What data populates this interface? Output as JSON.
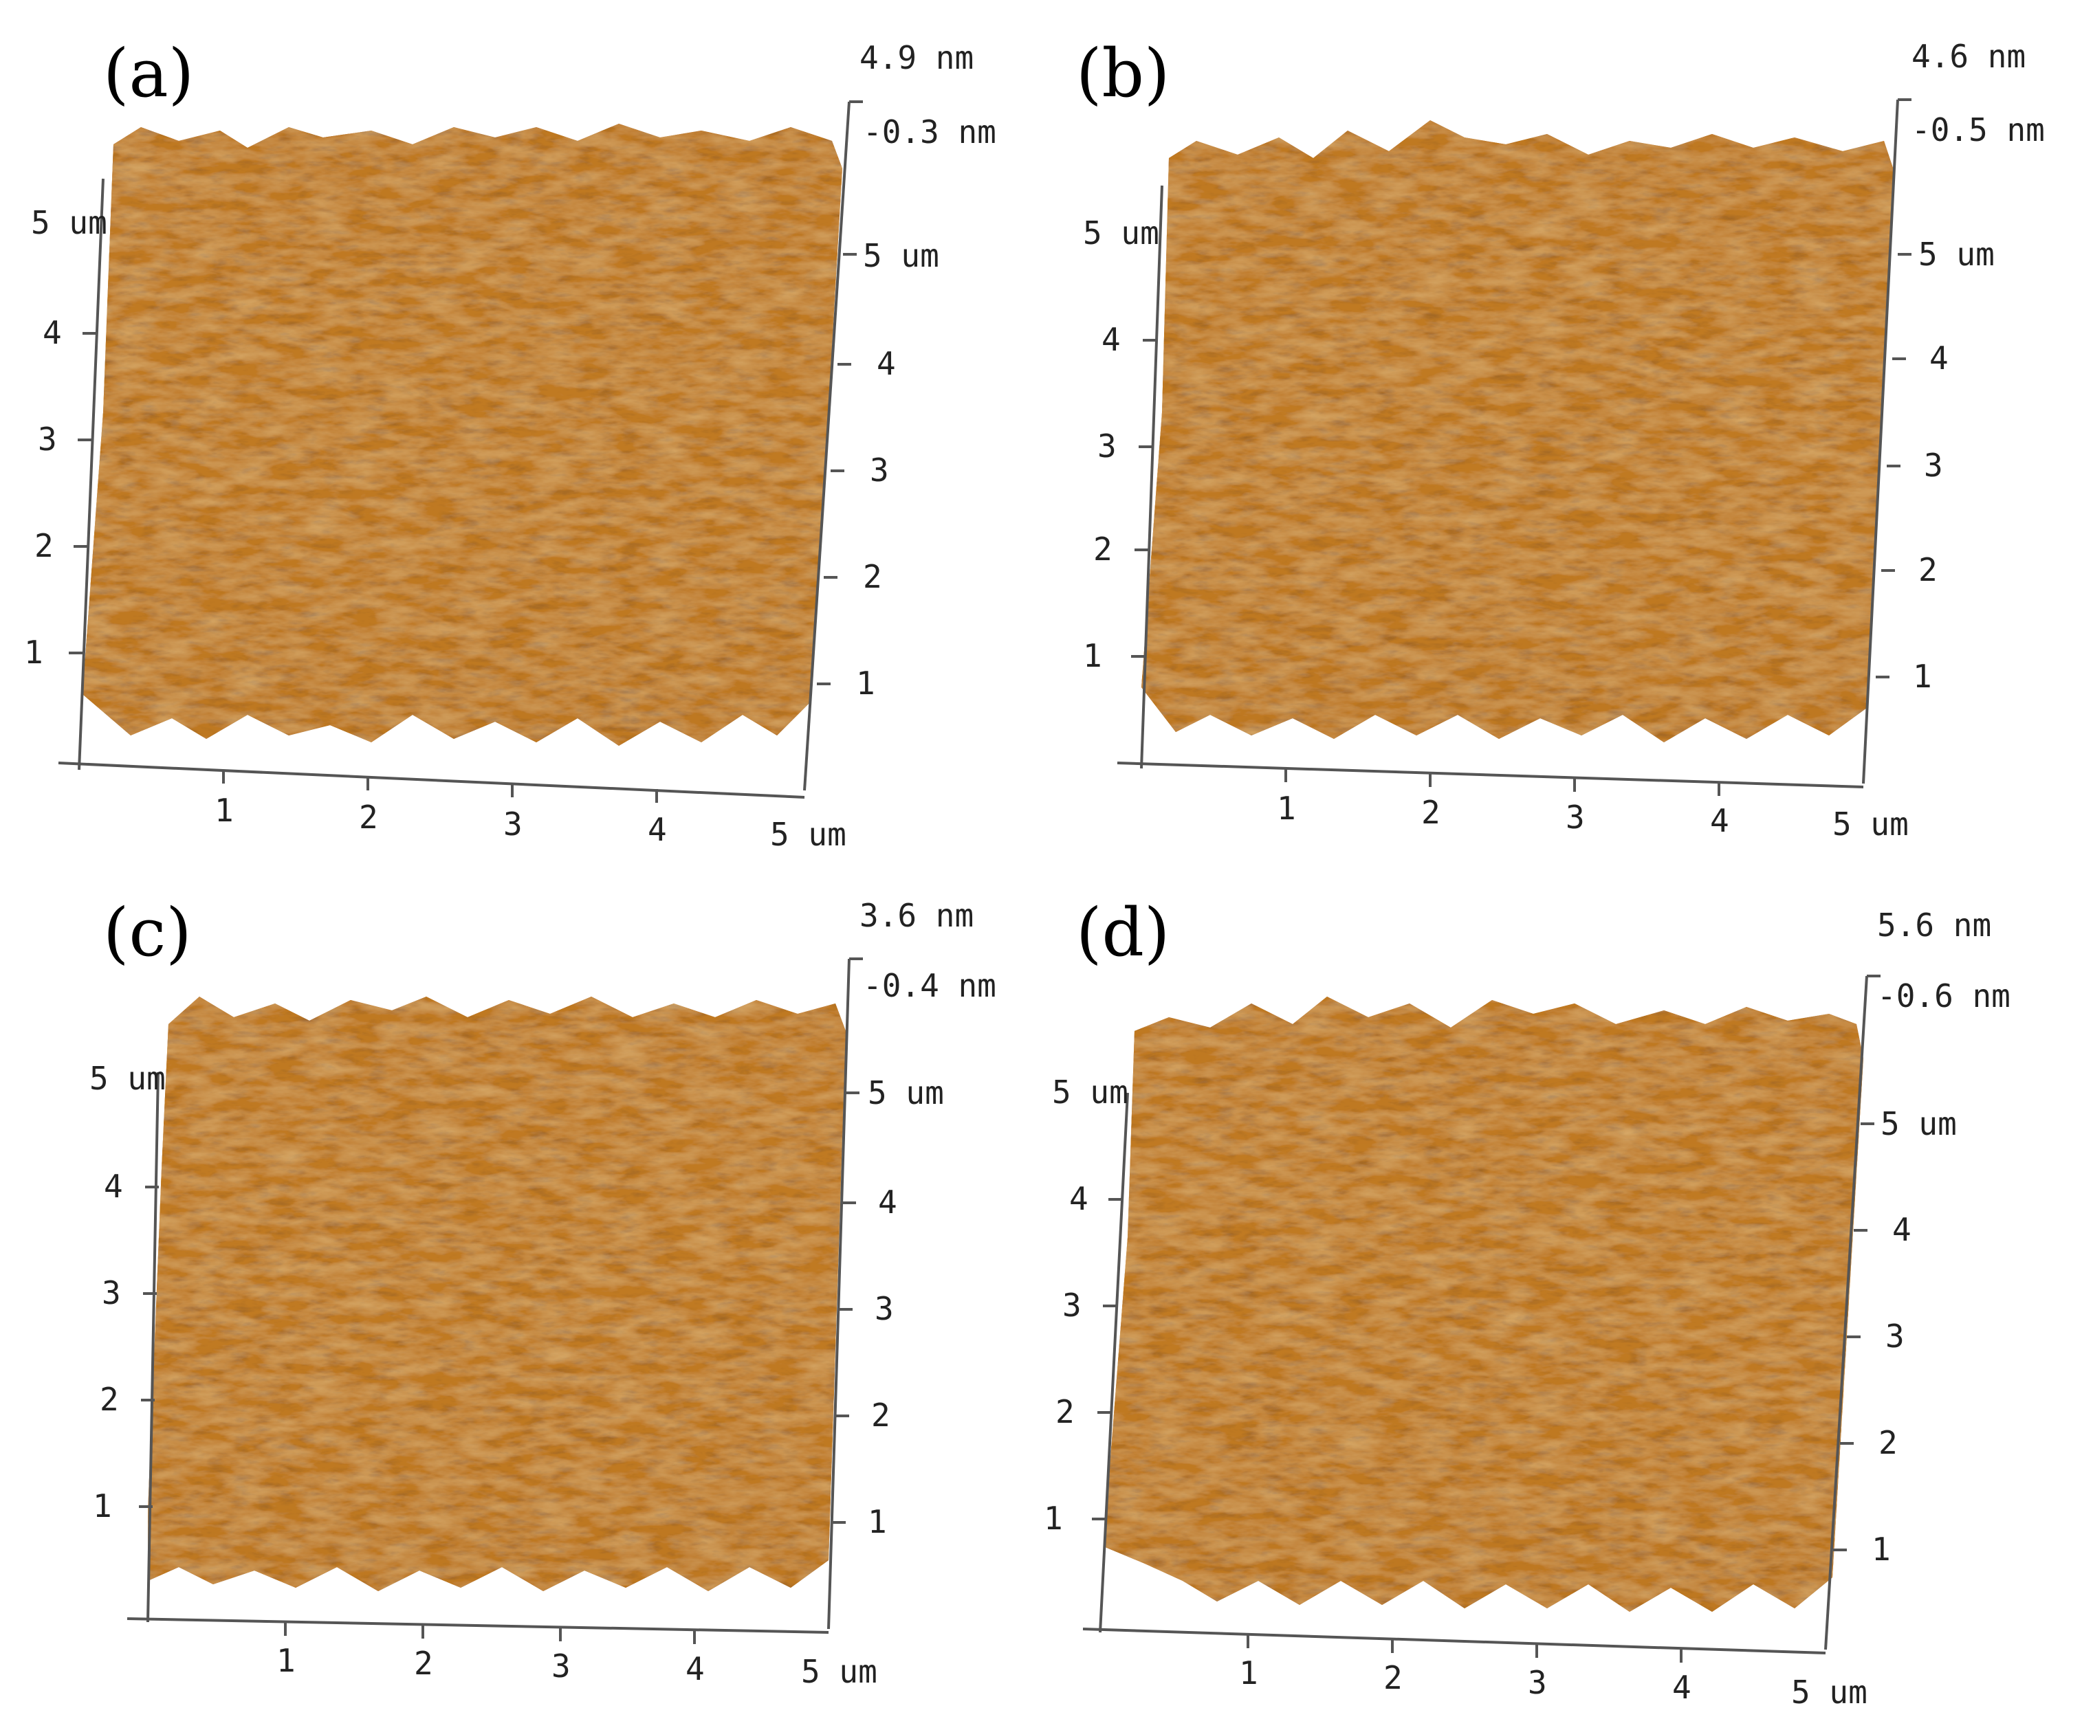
{
  "colors": {
    "surface_light": "#f7ecd6",
    "surface_mid": "#d9962f",
    "surface_dark": "#5a2a0c",
    "axis": "#555555"
  },
  "panels": [
    {
      "label": "(a)",
      "z_max": "4.9 nm",
      "z_min": "-0.3 nm",
      "y_top_left": "5 um",
      "y_top_right": "5 um",
      "x_end": "5 um",
      "ticks": [
        "1",
        "2",
        "3",
        "4"
      ]
    },
    {
      "label": "(b)",
      "z_max": "4.6 nm",
      "z_min": "-0.5 nm",
      "y_top_left": "5 um",
      "y_top_right": "5 um",
      "x_end": "5 um",
      "ticks": [
        "1",
        "2",
        "3",
        "4"
      ]
    },
    {
      "label": "(c)",
      "z_max": "3.6 nm",
      "z_min": "-0.4 nm",
      "y_top_left": "5 um",
      "y_top_right": "5 um",
      "x_end": "5 um",
      "ticks": [
        "1",
        "2",
        "3",
        "4"
      ]
    },
    {
      "label": "(d)",
      "z_max": "5.6 nm",
      "z_min": "-0.6 nm",
      "y_top_left": "5 um",
      "y_top_right": "5 um",
      "x_end": "5 um",
      "ticks": [
        "1",
        "2",
        "3",
        "4"
      ]
    }
  ]
}
